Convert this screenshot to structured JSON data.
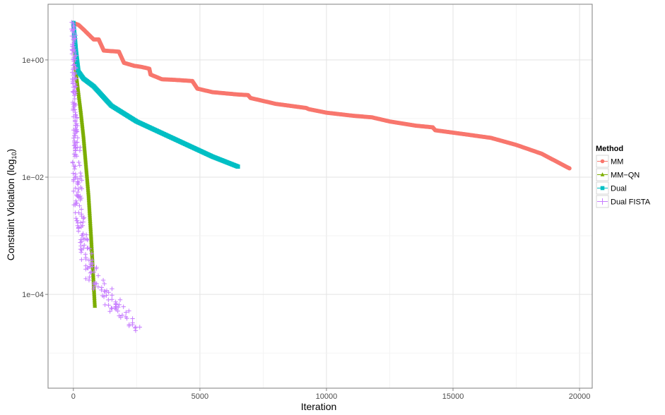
{
  "chart_data": {
    "type": "scatter",
    "xlabel": "Iteration",
    "ylabel": "Constaint Violation (log",
    "ylabel_sub": "10",
    "ylabel_close": ")",
    "yscale": "log10",
    "xlim": [
      -1000,
      20500
    ],
    "ylim_log10": [
      -5.6,
      0.95
    ],
    "grid": true,
    "x_ticks": [
      {
        "value": 0,
        "label": "0"
      },
      {
        "value": 5000,
        "label": "5000"
      },
      {
        "value": 10000,
        "label": "10000"
      },
      {
        "value": 15000,
        "label": "15000"
      },
      {
        "value": 20000,
        "label": "20000"
      }
    ],
    "y_ticks": [
      {
        "log10": 0,
        "label": "1e+00"
      },
      {
        "log10": -2,
        "label": "1e−02"
      },
      {
        "log10": -4,
        "label": "1e−04"
      }
    ],
    "legend": {
      "title": "Method",
      "position": "right"
    },
    "series": [
      {
        "name": "MM",
        "color": "#F8766D",
        "marker": "circle",
        "points": [
          [
            0,
            0.63
          ],
          [
            200,
            0.6
          ],
          [
            400,
            0.52
          ],
          [
            800,
            0.35
          ],
          [
            1000,
            0.35
          ],
          [
            1200,
            0.16
          ],
          [
            1500,
            0.15
          ],
          [
            1800,
            0.14
          ],
          [
            2000,
            -0.05
          ],
          [
            2400,
            -0.1
          ],
          [
            2700,
            -0.12
          ],
          [
            3000,
            -0.15
          ],
          [
            3050,
            -0.25
          ],
          [
            3500,
            -0.33
          ],
          [
            4000,
            -0.34
          ],
          [
            4700,
            -0.36
          ],
          [
            4900,
            -0.49
          ],
          [
            5500,
            -0.55
          ],
          [
            6500,
            -0.59
          ],
          [
            6900,
            -0.6
          ],
          [
            7000,
            -0.65
          ],
          [
            8000,
            -0.75
          ],
          [
            9200,
            -0.82
          ],
          [
            9300,
            -0.84
          ],
          [
            10000,
            -0.9
          ],
          [
            11000,
            -0.95
          ],
          [
            11800,
            -0.98
          ],
          [
            12500,
            -1.05
          ],
          [
            13500,
            -1.12
          ],
          [
            14200,
            -1.15
          ],
          [
            14300,
            -1.2
          ],
          [
            15500,
            -1.27
          ],
          [
            16500,
            -1.33
          ],
          [
            17500,
            -1.45
          ],
          [
            18500,
            -1.6
          ],
          [
            19600,
            -1.85
          ]
        ]
      },
      {
        "name": "MM−QN",
        "color": "#7CAE00",
        "marker": "triangle",
        "points": [
          [
            0,
            0.63
          ],
          [
            50,
            0.3
          ],
          [
            100,
            -0.2
          ],
          [
            200,
            -0.55
          ],
          [
            300,
            -0.9
          ],
          [
            400,
            -1.3
          ],
          [
            500,
            -1.8
          ],
          [
            600,
            -2.3
          ],
          [
            700,
            -3.0
          ],
          [
            750,
            -3.4
          ],
          [
            800,
            -3.8
          ],
          [
            850,
            -4.2
          ]
        ]
      },
      {
        "name": "Dual",
        "color": "#00BFC4",
        "marker": "square",
        "points": [
          [
            0,
            0.63
          ],
          [
            100,
            0.15
          ],
          [
            200,
            -0.2
          ],
          [
            400,
            -0.32
          ],
          [
            800,
            -0.45
          ],
          [
            1500,
            -0.78
          ],
          [
            2500,
            -1.05
          ],
          [
            3500,
            -1.25
          ],
          [
            4500,
            -1.45
          ],
          [
            5500,
            -1.65
          ],
          [
            6500,
            -1.82
          ]
        ]
      },
      {
        "name": "Dual FISTA",
        "color": "#C77CFF",
        "marker": "plus",
        "points": [
          [
            0,
            0.63
          ],
          [
            50,
            -0.5
          ],
          [
            100,
            -1.5
          ],
          [
            150,
            -2.0
          ],
          [
            200,
            -2.4
          ],
          [
            300,
            -2.8
          ],
          [
            500,
            -3.3
          ],
          [
            700,
            -3.6
          ],
          [
            1000,
            -3.85
          ],
          [
            1500,
            -4.15
          ],
          [
            2000,
            -4.35
          ],
          [
            2500,
            -4.5
          ]
        ]
      }
    ]
  }
}
